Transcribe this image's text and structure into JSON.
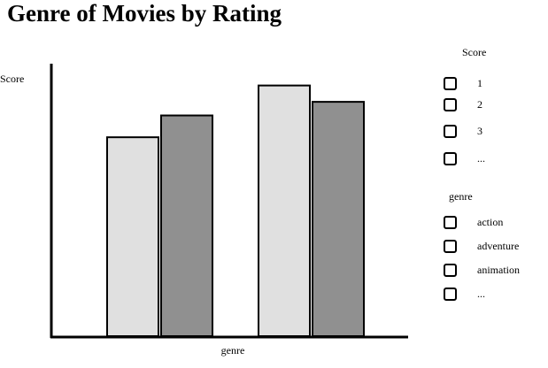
{
  "title": "Genre of Movies by Rating",
  "chart_data": {
    "type": "bar",
    "xlabel": "genre",
    "ylabel": "Score",
    "categories": [
      "",
      ""
    ],
    "series": [
      {
        "color": "#e0e0e0",
        "values": [
          73,
          92
        ]
      },
      {
        "color": "#909090",
        "values": [
          81,
          86
        ]
      }
    ],
    "ylim": [
      0,
      100
    ],
    "grid": false,
    "legend": "none"
  },
  "filters": {
    "score": {
      "title": "Score",
      "options": [
        "1",
        "2",
        "3",
        "..."
      ]
    },
    "genre": {
      "title": "genre",
      "options": [
        "action",
        "adventure",
        "animation",
        "..."
      ]
    }
  }
}
